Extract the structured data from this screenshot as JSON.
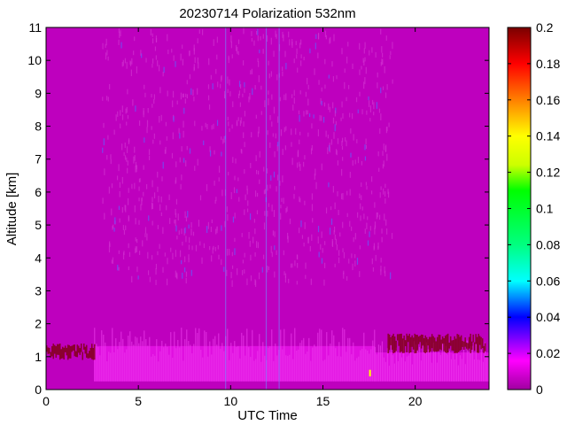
{
  "chart_data": {
    "type": "heatmap",
    "title": "20230714 Polarization 532nm",
    "xlabel": "UTC Time",
    "ylabel": "Altitude [km]",
    "xlim": [
      0,
      24
    ],
    "ylim": [
      0,
      11
    ],
    "x_ticks": [
      0,
      5,
      10,
      15,
      20
    ],
    "y_ticks": [
      0,
      1,
      2,
      3,
      4,
      5,
      6,
      7,
      8,
      9,
      10,
      11
    ],
    "grid": false,
    "colorbar": {
      "min": 0,
      "max": 0.2,
      "ticks": [
        0,
        0.02,
        0.04,
        0.06,
        0.08,
        0.1,
        0.12,
        0.14,
        0.16,
        0.18,
        0.2
      ],
      "colormap": "hsv-like (magenta-blue-cyan-green-yellow-orange-red-darkred)"
    },
    "background_value": 0.01,
    "regions": [
      {
        "desc": "no-data / background",
        "x": [
          0,
          24
        ],
        "y": [
          0,
          11
        ],
        "value": 0.005
      },
      {
        "desc": "sparse upper-tropospheric signal",
        "x": [
          3.0,
          18.8
        ],
        "y": [
          3.3,
          11
        ],
        "value": 0.012
      },
      {
        "desc": "boundary layer aerosol",
        "x": [
          2.6,
          17.8
        ],
        "y": [
          0.25,
          1.9
        ],
        "value": 0.015
      },
      {
        "desc": "boundary layer aerosol (evening)",
        "x": [
          17.8,
          24
        ],
        "y": [
          0.25,
          1.6
        ],
        "value": 0.014
      },
      {
        "desc": "boundary layer top (morning)",
        "x": [
          0,
          2.6
        ],
        "y": [
          0.9,
          1.4
        ],
        "value": 0.2
      },
      {
        "desc": "boundary layer top (evening)",
        "x": [
          18.5,
          23.8
        ],
        "y": [
          1.1,
          1.7
        ],
        "value": 0.2
      },
      {
        "desc": "isolated high value",
        "x": [
          17.5,
          17.6
        ],
        "y": [
          0.4,
          0.6
        ],
        "value": 0.15
      }
    ]
  }
}
